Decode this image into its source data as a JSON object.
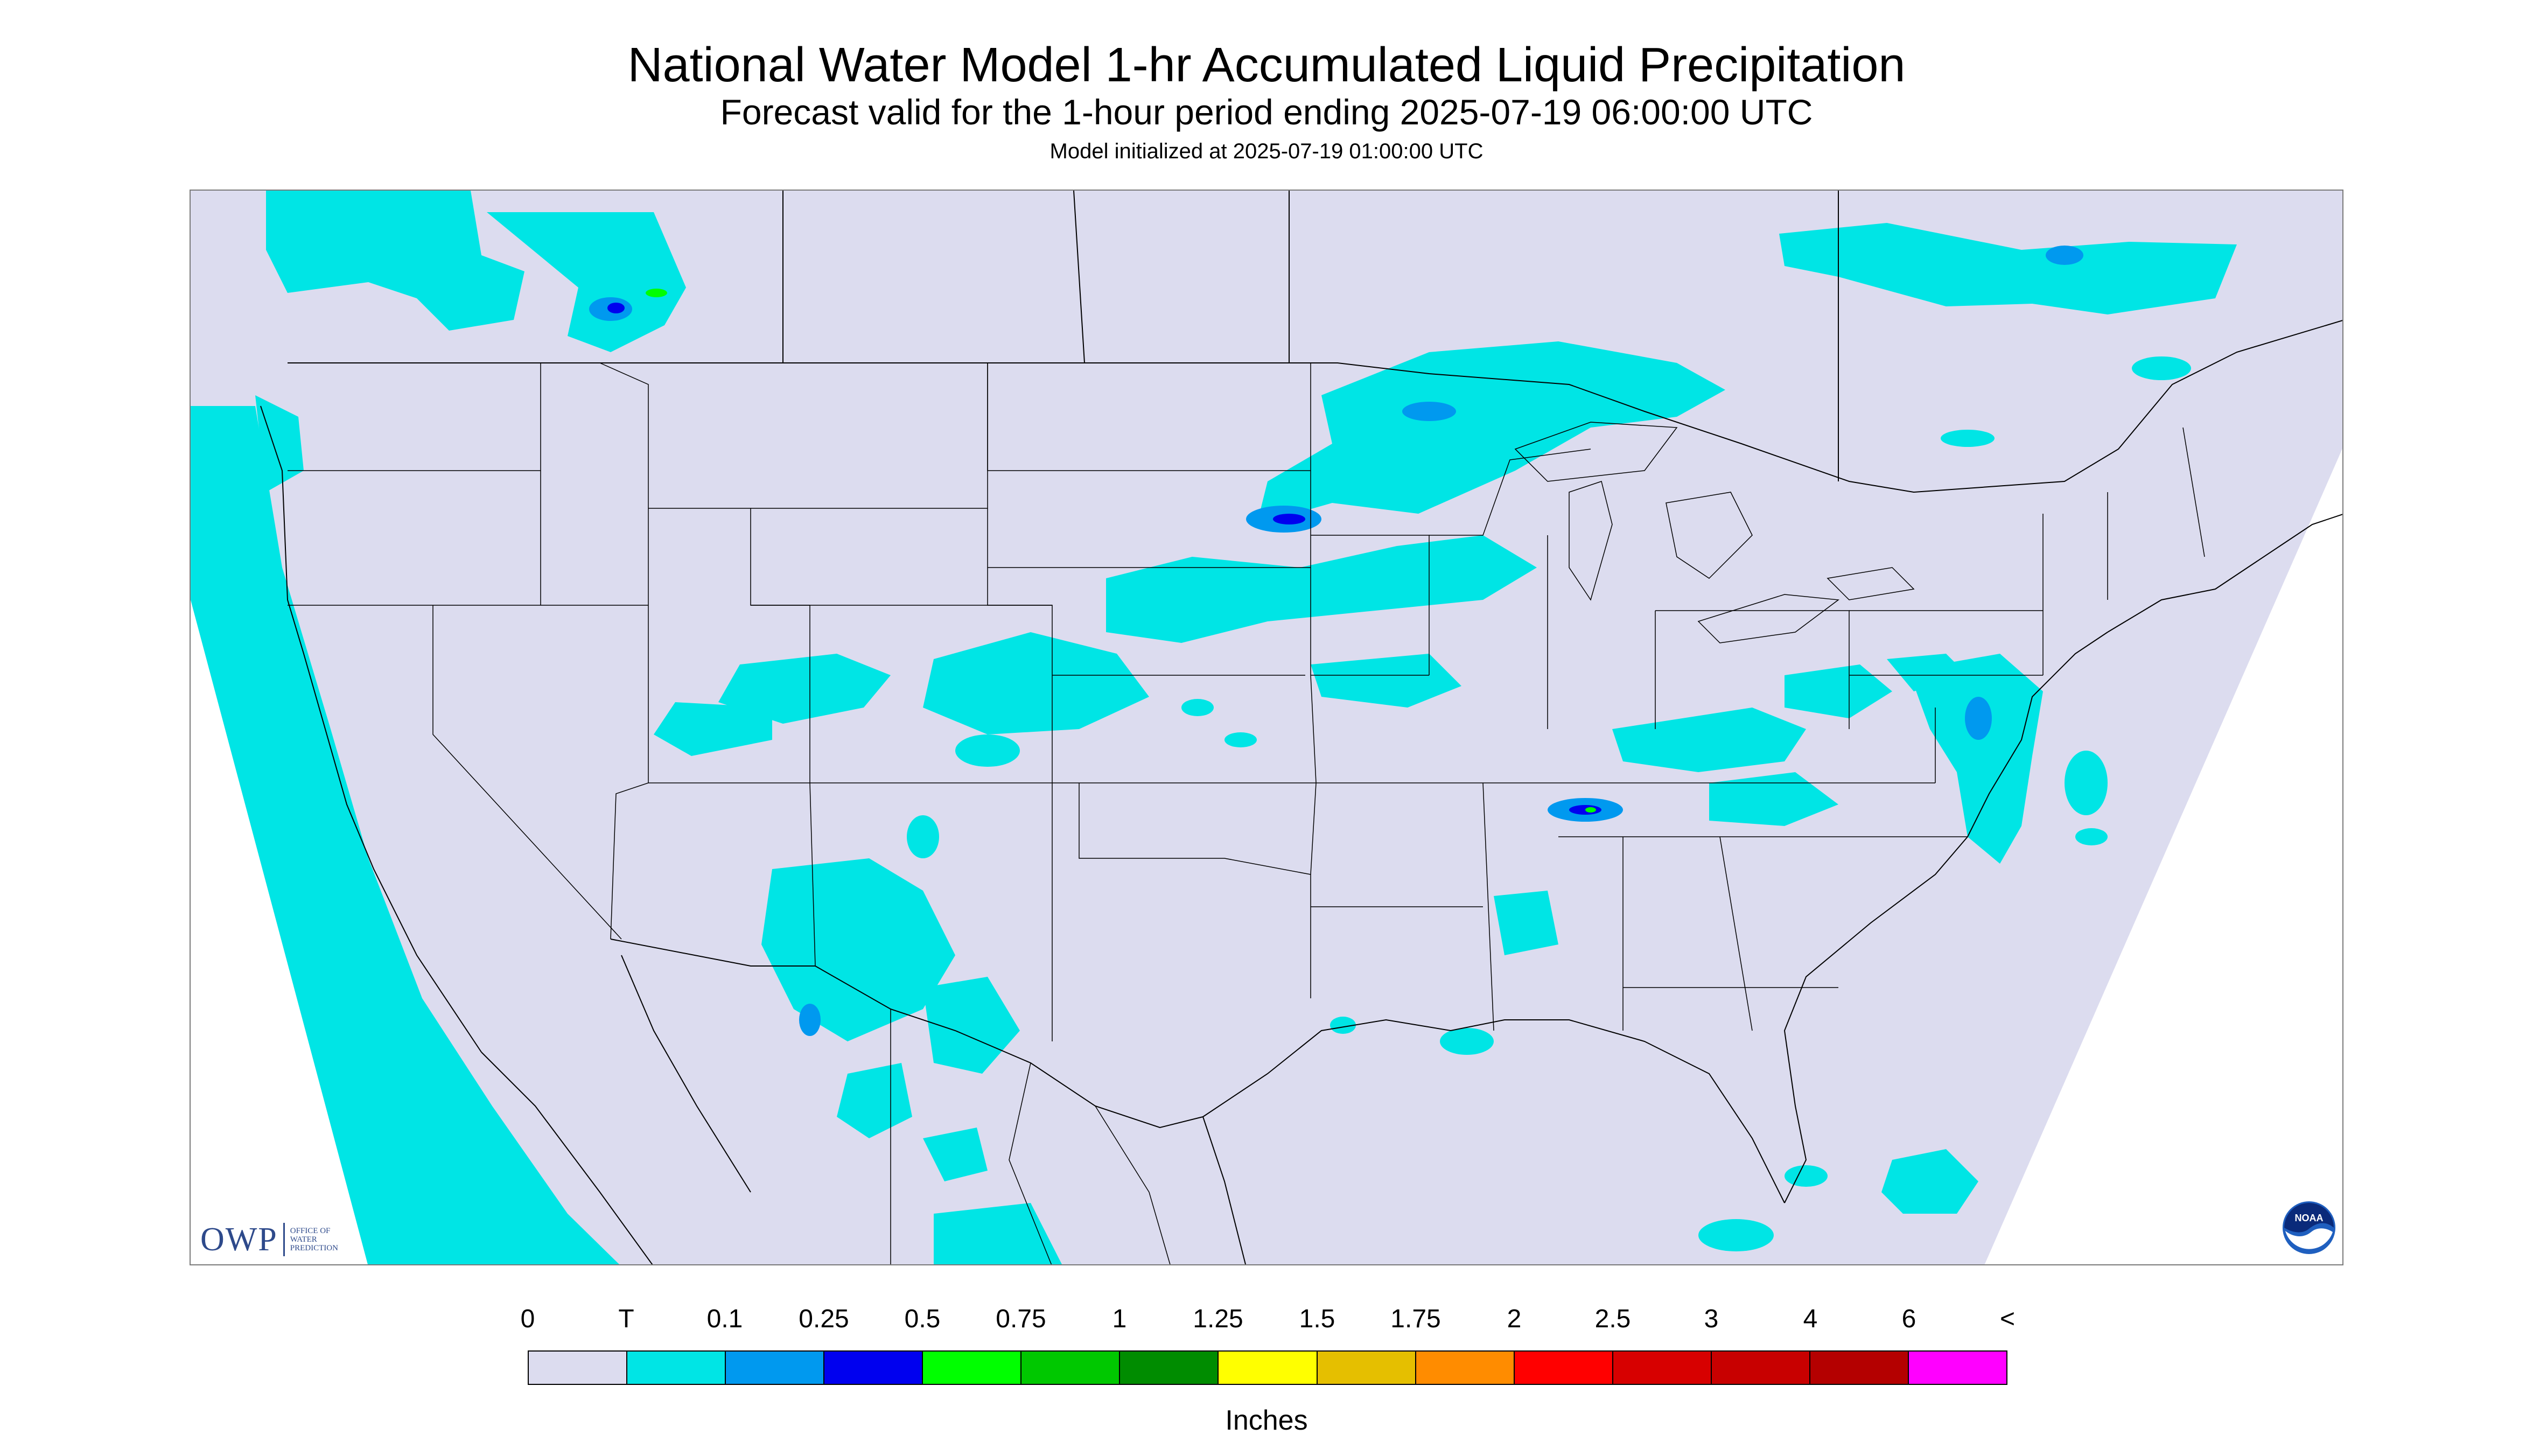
{
  "title": "National Water Model 1-hr Accumulated Liquid Precipitation",
  "subtitle": "Forecast valid for the 1-hour period ending 2025-07-19 06:00:00 UTC",
  "initialized": "Model initialized at 2025-07-19 01:00:00 UTC",
  "logos": {
    "owp": {
      "abbr": "OWP",
      "lines": [
        "OFFICE OF",
        "WATER",
        "PREDICTION"
      ],
      "icon": "owp-logo"
    },
    "noaa": {
      "text": "NOAA",
      "icon": "noaa-logo"
    }
  },
  "colors": {
    "map_background": "#dcdcef",
    "outside_domain": "#ffffff",
    "boundaries": "#000000"
  },
  "legend": {
    "labels": [
      "0",
      "T",
      "0.1",
      "0.25",
      "0.5",
      "0.75",
      "1",
      "1.25",
      "1.5",
      "1.75",
      "2",
      "2.5",
      "3",
      "4",
      "6",
      "<"
    ],
    "colors": [
      "#dcdcef",
      "#00e5e5",
      "#0099ef",
      "#0000ef",
      "#00ff00",
      "#00c800",
      "#008c00",
      "#ffff00",
      "#e5bf00",
      "#ff8c00",
      "#ff0000",
      "#d70000",
      "#c80000",
      "#b40000",
      "#ff00ff",
      "#9955c9"
    ],
    "units": "Inches"
  }
}
